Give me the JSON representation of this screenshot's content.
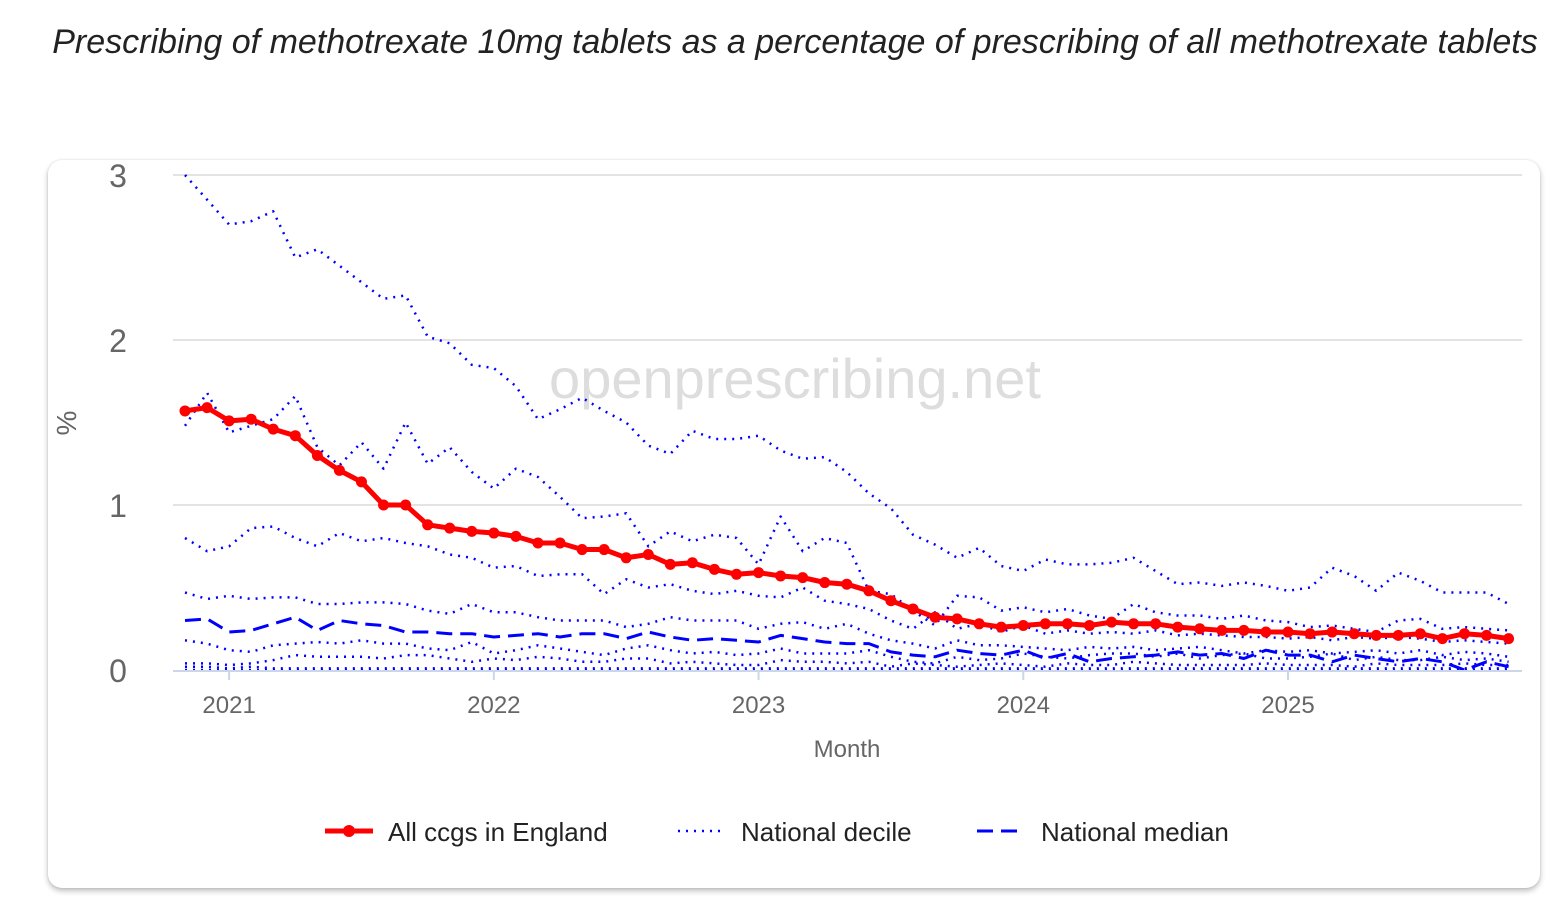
{
  "chart_data": {
    "type": "line",
    "title": "Prescribing of methotrexate 10mg tablets as a percentage of prescribing of all methotrexate tablets",
    "xlabel": "Month",
    "ylabel": "%",
    "ylim": [
      0,
      3
    ],
    "yticks": [
      "0",
      "1",
      "2",
      "3"
    ],
    "xticks": [
      {
        "date": "2021-01",
        "label": "2021"
      },
      {
        "date": "2022-01",
        "label": "2022"
      },
      {
        "date": "2023-01",
        "label": "2023"
      },
      {
        "date": "2024-01",
        "label": "2024"
      },
      {
        "date": "2025-01",
        "label": "2025"
      }
    ],
    "grid": true,
    "legend_position": "bottom",
    "watermark": "openprescribing.net",
    "start_month": "2020-11",
    "series": [
      {
        "name": "All ccgs in England",
        "style": "solid-markers",
        "color": "#ff0000",
        "values": [
          1.57,
          1.59,
          1.51,
          1.52,
          1.46,
          1.42,
          1.3,
          1.21,
          1.14,
          1.0,
          1.0,
          0.88,
          0.86,
          0.84,
          0.83,
          0.81,
          0.77,
          0.77,
          0.73,
          0.73,
          0.68,
          0.7,
          0.64,
          0.65,
          0.61,
          0.58,
          0.59,
          0.57,
          0.56,
          0.53,
          0.52,
          0.48,
          0.42,
          0.37,
          0.32,
          0.31,
          0.28,
          0.26,
          0.27,
          0.28,
          0.28,
          0.27,
          0.29,
          0.28,
          0.28,
          0.26,
          0.25,
          0.24,
          0.24,
          0.23,
          0.23,
          0.22,
          0.23,
          0.22,
          0.21,
          0.21,
          0.22,
          0.19,
          0.22,
          0.21,
          0.19
        ]
      },
      {
        "name": "National decile",
        "style": "dotted",
        "color": "#0000ff",
        "values": [
          3.0,
          2.85,
          2.7,
          2.72,
          2.78,
          2.5,
          2.55,
          2.45,
          2.35,
          2.25,
          2.27,
          2.02,
          1.98,
          1.85,
          1.83,
          1.72,
          1.52,
          1.58,
          1.65,
          1.57,
          1.5,
          1.36,
          1.31,
          1.45,
          1.4,
          1.4,
          1.42,
          1.33,
          1.28,
          1.29,
          1.2,
          1.07,
          0.98,
          0.82,
          0.76,
          0.68,
          0.74,
          0.63,
          0.6,
          0.67,
          0.64,
          0.64,
          0.65,
          0.68,
          0.6,
          0.52,
          0.53,
          0.51,
          0.53,
          0.51,
          0.48,
          0.5,
          0.62,
          0.57,
          0.48,
          0.59,
          0.54,
          0.47,
          0.47,
          0.47,
          0.4
        ]
      },
      {
        "style": "dotted",
        "color": "#0000ff",
        "values": [
          1.48,
          1.68,
          1.44,
          1.48,
          1.52,
          1.66,
          1.35,
          1.24,
          1.38,
          1.22,
          1.5,
          1.25,
          1.35,
          1.2,
          1.1,
          1.22,
          1.17,
          1.05,
          0.92,
          0.93,
          0.95,
          0.75,
          0.84,
          0.78,
          0.82,
          0.8,
          0.64,
          0.93,
          0.72,
          0.8,
          0.77,
          0.48,
          0.46,
          0.36,
          0.27,
          0.45,
          0.44,
          0.36,
          0.38,
          0.35,
          0.37,
          0.33,
          0.31,
          0.4,
          0.35,
          0.33,
          0.33,
          0.31,
          0.33,
          0.3,
          0.29,
          0.26,
          0.27,
          0.25,
          0.23,
          0.3,
          0.31,
          0.25,
          0.26,
          0.25,
          0.24
        ]
      },
      {
        "style": "dotted",
        "color": "#0000ff",
        "values": [
          0.8,
          0.72,
          0.75,
          0.86,
          0.87,
          0.8,
          0.75,
          0.83,
          0.78,
          0.8,
          0.77,
          0.75,
          0.7,
          0.68,
          0.62,
          0.63,
          0.57,
          0.58,
          0.58,
          0.46,
          0.55,
          0.5,
          0.52,
          0.48,
          0.46,
          0.48,
          0.45,
          0.44,
          0.5,
          0.42,
          0.4,
          0.37,
          0.3,
          0.25,
          0.35,
          0.25,
          0.28,
          0.23,
          0.27,
          0.22,
          0.24,
          0.22,
          0.23,
          0.22,
          0.24,
          0.21,
          0.22,
          0.21,
          0.2,
          0.2,
          0.19,
          0.2,
          0.18,
          0.2,
          0.19,
          0.2,
          0.19,
          0.17,
          0.18,
          0.17,
          0.16
        ]
      },
      {
        "style": "dotted",
        "color": "#0000ff",
        "values": [
          0.47,
          0.43,
          0.45,
          0.43,
          0.44,
          0.44,
          0.4,
          0.4,
          0.41,
          0.41,
          0.4,
          0.36,
          0.34,
          0.4,
          0.35,
          0.35,
          0.32,
          0.3,
          0.3,
          0.3,
          0.26,
          0.28,
          0.32,
          0.3,
          0.3,
          0.3,
          0.25,
          0.28,
          0.29,
          0.25,
          0.28,
          0.22,
          0.18,
          0.16,
          0.13,
          0.18,
          0.15,
          0.15,
          0.14,
          0.13,
          0.12,
          0.14,
          0.13,
          0.14,
          0.12,
          0.13,
          0.14,
          0.12,
          0.1,
          0.12,
          0.11,
          0.12,
          0.1,
          0.11,
          0.12,
          0.1,
          0.12,
          0.09,
          0.11,
          0.1,
          0.08
        ]
      },
      {
        "name": "National median",
        "style": "dashed",
        "color": "#0000ff",
        "values": [
          0.3,
          0.31,
          0.23,
          0.24,
          0.28,
          0.32,
          0.24,
          0.3,
          0.28,
          0.27,
          0.23,
          0.23,
          0.22,
          0.22,
          0.2,
          0.21,
          0.22,
          0.2,
          0.22,
          0.22,
          0.19,
          0.23,
          0.2,
          0.18,
          0.19,
          0.18,
          0.17,
          0.21,
          0.19,
          0.17,
          0.16,
          0.16,
          0.11,
          0.09,
          0.08,
          0.12,
          0.1,
          0.09,
          0.12,
          0.07,
          0.1,
          0.05,
          0.07,
          0.08,
          0.09,
          0.11,
          0.09,
          0.1,
          0.07,
          0.12,
          0.09,
          0.09,
          0.05,
          0.09,
          0.07,
          0.05,
          0.07,
          0.05,
          0.0,
          0.05,
          0.02
        ]
      },
      {
        "style": "dotted",
        "color": "#0000ff",
        "values": [
          0.18,
          0.16,
          0.12,
          0.11,
          0.15,
          0.16,
          0.17,
          0.16,
          0.18,
          0.16,
          0.16,
          0.13,
          0.12,
          0.17,
          0.1,
          0.12,
          0.15,
          0.13,
          0.11,
          0.09,
          0.13,
          0.15,
          0.12,
          0.1,
          0.11,
          0.09,
          0.1,
          0.13,
          0.1,
          0.1,
          0.1,
          0.12,
          0.08,
          0.05,
          0.04,
          0.08,
          0.06,
          0.07,
          0.1,
          0.08,
          0.07,
          0.09,
          0.1,
          0.1,
          0.08,
          0.1,
          0.07,
          0.09,
          0.1,
          0.07,
          0.07,
          0.08,
          0.1,
          0.06,
          0.08,
          0.06,
          0.06,
          0.08,
          0.06,
          0.07,
          0.05
        ]
      },
      {
        "style": "dotted",
        "color": "#0000ff",
        "values": [
          0.04,
          0.04,
          0.03,
          0.04,
          0.06,
          0.09,
          0.08,
          0.08,
          0.08,
          0.07,
          0.09,
          0.09,
          0.07,
          0.05,
          0.07,
          0.06,
          0.08,
          0.07,
          0.05,
          0.05,
          0.07,
          0.07,
          0.04,
          0.05,
          0.04,
          0.03,
          0.03,
          0.06,
          0.05,
          0.05,
          0.04,
          0.05,
          0.02,
          0.04,
          0.03,
          0.02,
          0.03,
          0.04,
          0.03,
          0.02,
          0.04,
          0.03,
          0.03,
          0.05,
          0.04,
          0.03,
          0.03,
          0.03,
          0.03,
          0.04,
          0.03,
          0.03,
          0.03,
          0.02,
          0.04,
          0.03,
          0.03,
          0.03,
          0.04,
          0.03,
          0.03
        ]
      },
      {
        "style": "dotted",
        "color": "#0000ff",
        "values": [
          0.02,
          0.02,
          0.01,
          0.02,
          0.01,
          0.01,
          0.01,
          0.01,
          0.01,
          0.01,
          0.01,
          0.01,
          0.01,
          0.01,
          0.01,
          0.01,
          0.01,
          0.01,
          0.01,
          0.01,
          0.01,
          0.01,
          0.01,
          0.01,
          0.01,
          0.01,
          0.01,
          0.01,
          0.01,
          0.01,
          0.01,
          0.01,
          0.01,
          0.01,
          0.01,
          0.01,
          0.01,
          0.01,
          0.01,
          0.01,
          0.01,
          0.01,
          0.01,
          0.01,
          0.01,
          0.01,
          0.01,
          0.01,
          0.01,
          0.01,
          0.01,
          0.01,
          0.01,
          0.01,
          0.01,
          0.01,
          0.01,
          0.01,
          0.01,
          0.01,
          0.01
        ]
      },
      {
        "style": "dotted",
        "color": "#0000ff",
        "values": [
          0,
          0,
          0,
          0,
          0,
          0,
          0,
          0,
          0,
          0,
          0,
          0,
          0,
          0,
          0,
          0,
          0,
          0,
          0,
          0,
          0,
          0,
          0,
          0,
          0,
          0,
          0,
          0,
          0,
          0,
          0,
          0,
          0,
          0,
          0,
          0,
          0,
          0,
          0,
          0,
          0,
          0,
          0,
          0,
          0,
          0,
          0,
          0,
          0,
          0,
          0,
          0,
          0,
          0,
          0,
          0,
          0,
          0,
          0,
          0,
          0
        ]
      }
    ],
    "legend": [
      {
        "label": "All ccgs in England",
        "style": "solid-markers",
        "color": "#ff0000"
      },
      {
        "label": "National decile",
        "style": "dotted",
        "color": "#0000ff"
      },
      {
        "label": "National median",
        "style": "dashed",
        "color": "#0000ff"
      }
    ]
  }
}
